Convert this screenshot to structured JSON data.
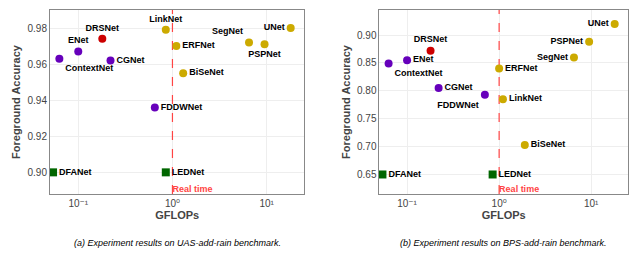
{
  "chart_data": [
    {
      "type": "scatter",
      "title": "(a) Experiment results on UAS-add-rain benchmark.",
      "xlabel": "GFLOPs",
      "ylabel": "Foreground Accuracy",
      "log": "x",
      "grid": true,
      "xlim": [
        0.05011872336272722,
        25.118864315095795
      ],
      "xticks": [
        {
          "value": 0.1,
          "label": "10⁻¹"
        },
        {
          "value": 1,
          "label": "10⁰"
        },
        {
          "value": 10,
          "label": "10¹"
        }
      ],
      "ylim": [
        0.888,
        0.99
      ],
      "yticks": [
        {
          "value": 0.9,
          "label": "0.90"
        },
        0.92,
        0.94,
        0.96,
        0.98
      ],
      "annotations": [
        {
          "x": 1.0,
          "text": "Real time",
          "color": "#ff4444",
          "line_style": "dashed"
        }
      ],
      "series": [
        {
          "name": "DRSNet",
          "color": "#cc0000",
          "marker": "circle",
          "x": [
            0.18
          ],
          "values": [
            0.974
          ]
        },
        {
          "name": "ENet",
          "color": "#6600bb",
          "marker": "circle",
          "x": [
            0.1
          ],
          "values": [
            0.967
          ]
        },
        {
          "name": "ContextNet",
          "color": "#6600bb",
          "marker": "circle",
          "x": [
            0.063
          ],
          "values": [
            0.963
          ]
        },
        {
          "name": "CGNet",
          "color": "#6600bb",
          "marker": "circle",
          "x": [
            0.22
          ],
          "values": [
            0.962
          ]
        },
        {
          "name": "LinkNet",
          "color": "#ccaa00",
          "marker": "circle",
          "x": [
            0.85
          ],
          "values": [
            0.979
          ]
        },
        {
          "name": "ERFNet",
          "color": "#ccaa00",
          "marker": "circle",
          "x": [
            1.1
          ],
          "values": [
            0.97
          ]
        },
        {
          "name": "BiSeNet",
          "color": "#ccaa00",
          "marker": "circle",
          "x": [
            1.3
          ],
          "values": [
            0.955
          ]
        },
        {
          "name": "SegNet",
          "color": "#ccaa00",
          "marker": "circle",
          "x": [
            6.5
          ],
          "values": [
            0.972
          ]
        },
        {
          "name": "PSPNet",
          "color": "#ccaa00",
          "marker": "circle",
          "x": [
            9.5
          ],
          "values": [
            0.971
          ]
        },
        {
          "name": "UNet",
          "color": "#ccaa00",
          "marker": "circle",
          "x": [
            18.0
          ],
          "values": [
            0.98
          ]
        },
        {
          "name": "FDDWNet",
          "color": "#6600bb",
          "marker": "circle",
          "x": [
            0.65
          ],
          "values": [
            0.936
          ]
        },
        {
          "name": "DFANet",
          "color": "#006600",
          "marker": "square",
          "x": [
            0.054
          ],
          "values": [
            0.9
          ]
        },
        {
          "name": "LEDNet",
          "color": "#006600",
          "marker": "square",
          "x": [
            0.85
          ],
          "values": [
            0.9
          ]
        }
      ]
    },
    {
      "type": "scatter",
      "title": "(b) Experiment results on BPS-add-rain benchmark.",
      "xlabel": "GFLOPs",
      "ylabel": "Foreground Accuracy",
      "log": "x",
      "grid": true,
      "xlim": [
        0.05011872336272722,
        25.118864315095795
      ],
      "xticks": [
        {
          "value": 0.1,
          "label": "10⁻¹"
        },
        {
          "value": 1,
          "label": "10⁰"
        },
        {
          "value": 10,
          "label": "10¹"
        }
      ],
      "ylim": [
        0.615,
        0.945
      ],
      "yticks": [
        0.65,
        {
          "value": 0.7,
          "label": "0.70"
        },
        0.75,
        {
          "value": 0.8,
          "label": "0.80"
        },
        0.85,
        {
          "value": 0.9,
          "label": "0.90"
        }
      ],
      "annotations": [
        {
          "x": 1.0,
          "text": "Real time",
          "color": "#ff4444",
          "line_style": "dashed"
        }
      ],
      "series": [
        {
          "name": "DRSNet",
          "color": "#cc0000",
          "marker": "circle",
          "x": [
            0.18
          ],
          "values": [
            0.872
          ]
        },
        {
          "name": "ENet",
          "color": "#6600bb",
          "marker": "circle",
          "x": [
            0.1
          ],
          "values": [
            0.855
          ]
        },
        {
          "name": "ContextNet",
          "color": "#6600bb",
          "marker": "circle",
          "x": [
            0.063
          ],
          "values": [
            0.849
          ]
        },
        {
          "name": "CGNet",
          "color": "#6600bb",
          "marker": "circle",
          "x": [
            0.22
          ],
          "values": [
            0.805
          ]
        },
        {
          "name": "LinkNet",
          "color": "#ccaa00",
          "marker": "circle",
          "x": [
            1.1
          ],
          "values": [
            0.785
          ]
        },
        {
          "name": "ERFNet",
          "color": "#ccaa00",
          "marker": "circle",
          "x": [
            1.0
          ],
          "values": [
            0.84
          ]
        },
        {
          "name": "BiSeNet",
          "color": "#ccaa00",
          "marker": "circle",
          "x": [
            1.9
          ],
          "values": [
            0.703
          ]
        },
        {
          "name": "SegNet",
          "color": "#ccaa00",
          "marker": "circle",
          "x": [
            6.5
          ],
          "values": [
            0.86
          ]
        },
        {
          "name": "PSPNet",
          "color": "#ccaa00",
          "marker": "circle",
          "x": [
            9.5
          ],
          "values": [
            0.888
          ]
        },
        {
          "name": "UNet",
          "color": "#ccaa00",
          "marker": "circle",
          "x": [
            18.0
          ],
          "values": [
            0.92
          ]
        },
        {
          "name": "FDDWNet",
          "color": "#6600bb",
          "marker": "circle",
          "x": [
            0.7
          ],
          "values": [
            0.793
          ]
        },
        {
          "name": "DFANet",
          "color": "#006600",
          "marker": "square",
          "x": [
            0.054
          ],
          "values": [
            0.65
          ]
        },
        {
          "name": "LEDNet",
          "color": "#006600",
          "marker": "square",
          "x": [
            0.85
          ],
          "values": [
            0.65
          ]
        }
      ]
    }
  ]
}
